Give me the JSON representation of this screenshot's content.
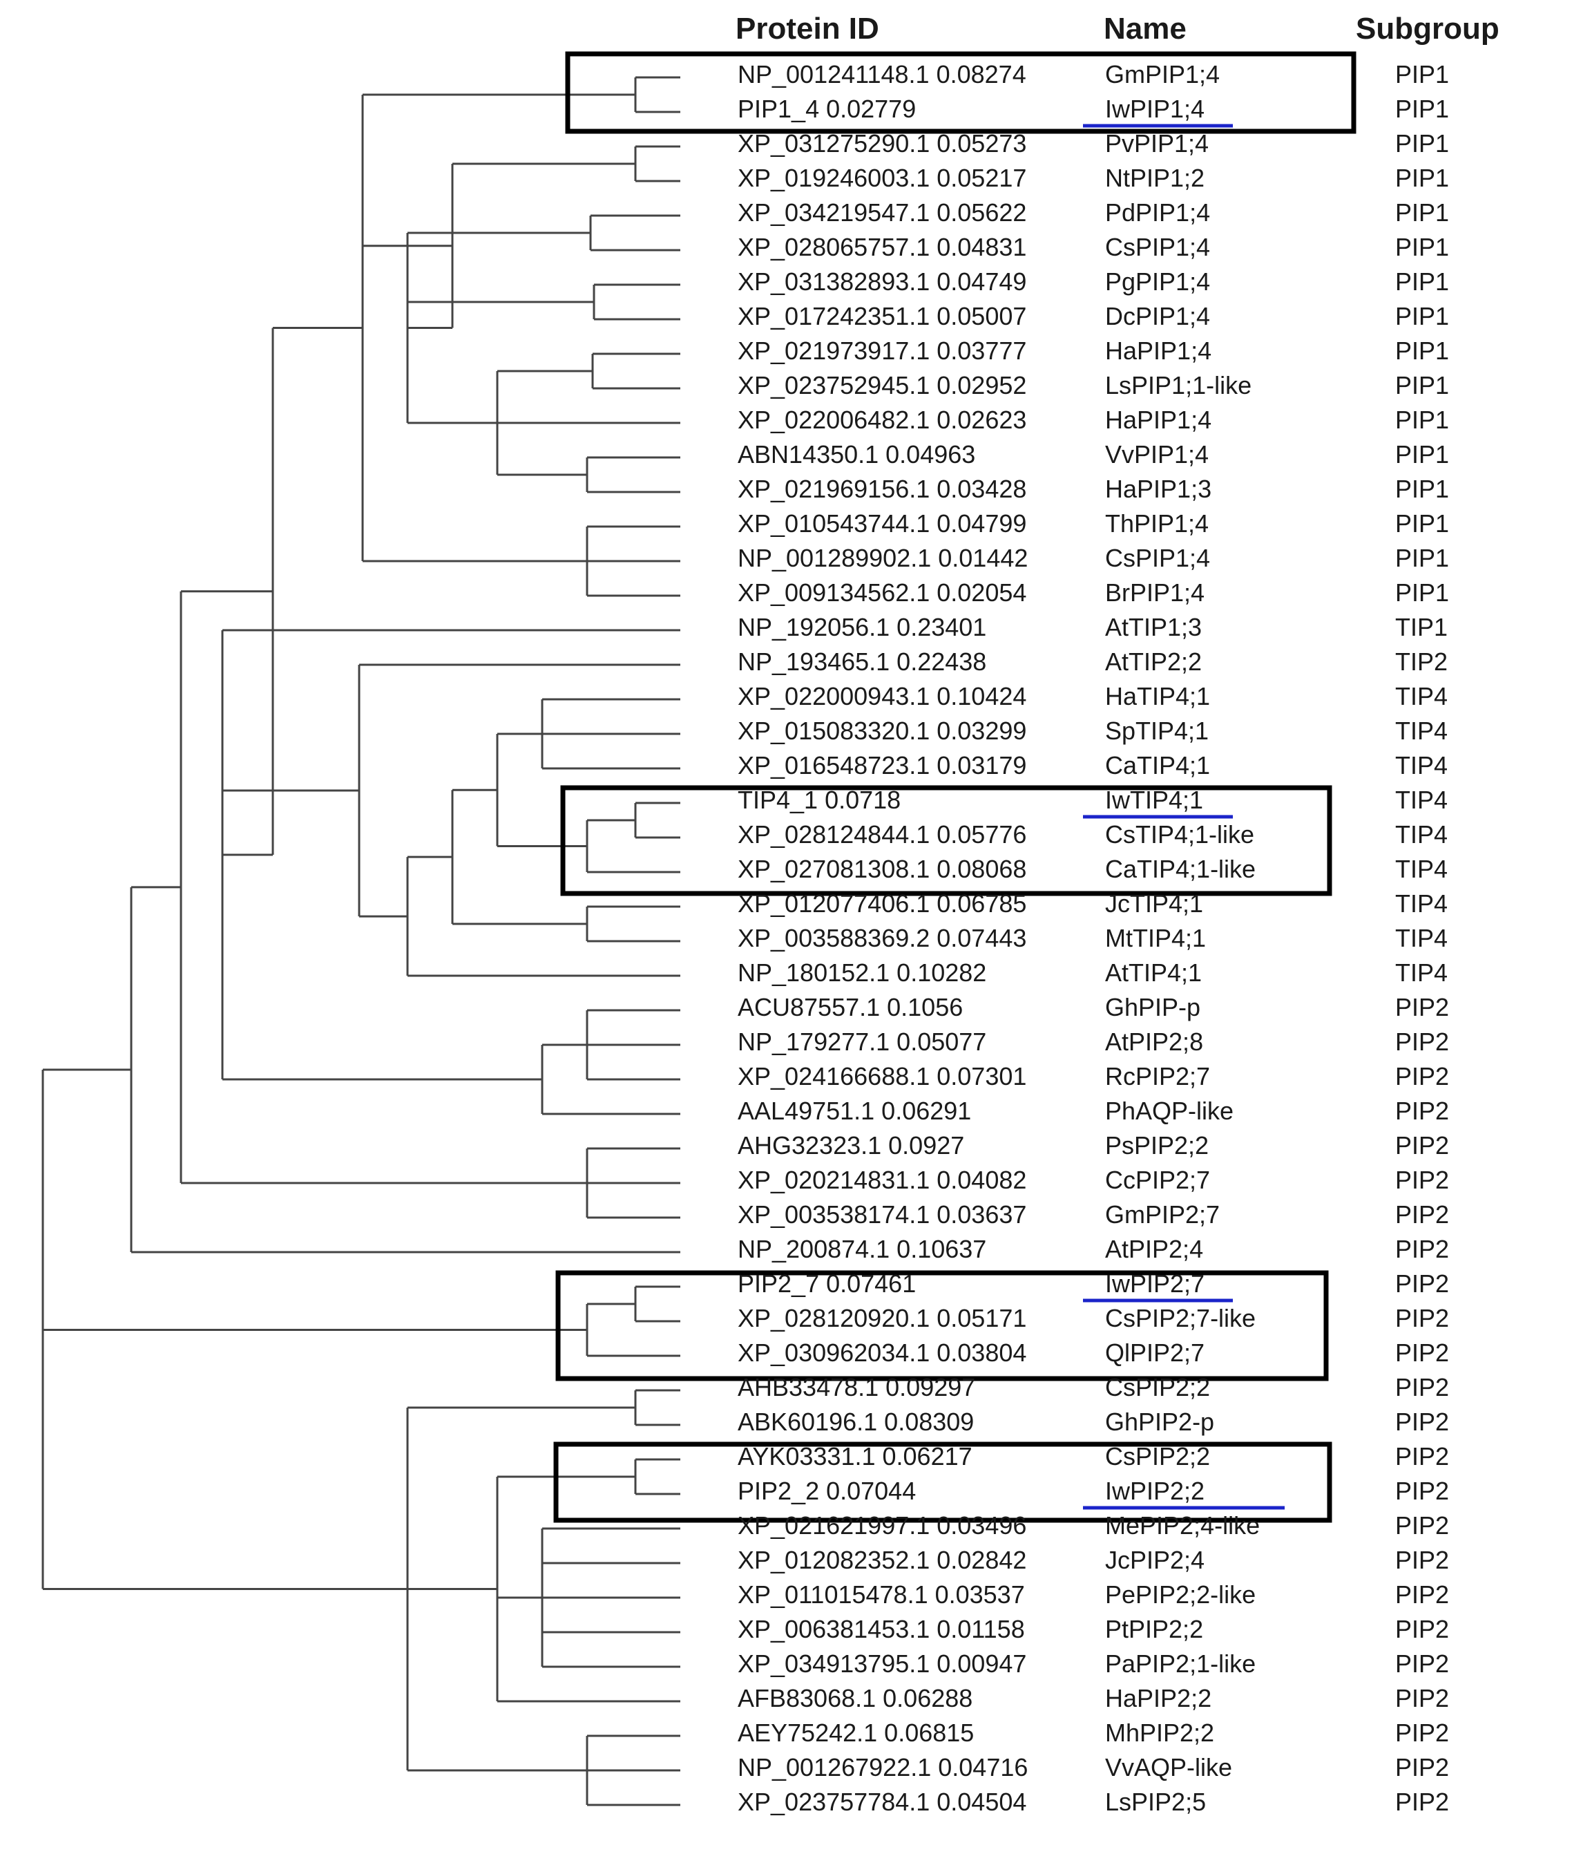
{
  "headers": {
    "protein_id": "Protein ID",
    "name": "Name",
    "subgroup": "Subgroup"
  },
  "colors": {
    "branch": "#444444",
    "box": "#000000",
    "underline": "#1b24c9"
  },
  "tree": {
    "branch_lengths_shown_in_labels": true,
    "highlighted_groups": [
      {
        "members": [
          "GmPIP1;4",
          "IwPIP1;4"
        ]
      },
      {
        "members": [
          "IwTIP4;1",
          "CsTIP4;1-like",
          "CaTIP4;1-like"
        ]
      },
      {
        "members": [
          "IwPIP2;7",
          "CsPIP2;7-like",
          "QlPIP2;7"
        ]
      },
      {
        "members": [
          "CsPIP2;2",
          "IwPIP2;2"
        ]
      }
    ]
  },
  "leaves": [
    {
      "id": "NP_001241148.1 0.08274",
      "name": "GmPIP1;4",
      "subgroup": "PIP1",
      "underline": false
    },
    {
      "id": "PIP1_4 0.02779",
      "name": "IwPIP1;4",
      "subgroup": "PIP1",
      "underline": true
    },
    {
      "id": "XP_031275290.1 0.05273",
      "name": "PvPIP1;4",
      "subgroup": "PIP1",
      "underline": false
    },
    {
      "id": "XP_019246003.1 0.05217",
      "name": "NtPIP1;2",
      "subgroup": "PIP1",
      "underline": false
    },
    {
      "id": "XP_034219547.1 0.05622",
      "name": "PdPIP1;4",
      "subgroup": "PIP1",
      "underline": false
    },
    {
      "id": "XP_028065757.1 0.04831",
      "name": "CsPIP1;4",
      "subgroup": "PIP1",
      "underline": false
    },
    {
      "id": "XP_031382893.1 0.04749",
      "name": "PgPIP1;4",
      "subgroup": "PIP1",
      "underline": false
    },
    {
      "id": "XP_017242351.1 0.05007",
      "name": "DcPIP1;4",
      "subgroup": "PIP1",
      "underline": false
    },
    {
      "id": "XP_021973917.1 0.03777",
      "name": "HaPIP1;4",
      "subgroup": "PIP1",
      "underline": false
    },
    {
      "id": "XP_023752945.1 0.02952",
      "name": "LsPIP1;1-like",
      "subgroup": "PIP1",
      "underline": false
    },
    {
      "id": "XP_022006482.1 0.02623",
      "name": "HaPIP1;4",
      "subgroup": "PIP1",
      "underline": false
    },
    {
      "id": "ABN14350.1 0.04963",
      "name": "VvPIP1;4",
      "subgroup": "PIP1",
      "underline": false
    },
    {
      "id": "XP_021969156.1 0.03428",
      "name": "HaPIP1;3",
      "subgroup": "PIP1",
      "underline": false
    },
    {
      "id": "XP_010543744.1 0.04799",
      "name": "ThPIP1;4",
      "subgroup": "PIP1",
      "underline": false
    },
    {
      "id": "NP_001289902.1 0.01442",
      "name": "CsPIP1;4",
      "subgroup": "PIP1",
      "underline": false
    },
    {
      "id": "XP_009134562.1 0.02054",
      "name": "BrPIP1;4",
      "subgroup": "PIP1",
      "underline": false
    },
    {
      "id": "NP_192056.1 0.23401",
      "name": "AtTIP1;3",
      "subgroup": "TIP1",
      "underline": false
    },
    {
      "id": "NP_193465.1 0.22438",
      "name": "AtTIP2;2",
      "subgroup": "TIP2",
      "underline": false
    },
    {
      "id": "XP_022000943.1 0.10424",
      "name": "HaTIP4;1",
      "subgroup": "TIP4",
      "underline": false
    },
    {
      "id": "XP_015083320.1 0.03299",
      "name": "SpTIP4;1",
      "subgroup": "TIP4",
      "underline": false
    },
    {
      "id": "XP_016548723.1 0.03179",
      "name": "CaTIP4;1",
      "subgroup": "TIP4",
      "underline": false
    },
    {
      "id": "TIP4_1 0.0718",
      "name": "IwTIP4;1",
      "subgroup": "TIP4",
      "underline": true
    },
    {
      "id": "XP_028124844.1 0.05776",
      "name": "CsTIP4;1-like",
      "subgroup": "TIP4",
      "underline": false
    },
    {
      "id": "XP_027081308.1 0.08068",
      "name": "CaTIP4;1-like",
      "subgroup": "TIP4",
      "underline": false
    },
    {
      "id": "XP_012077406.1 0.06785",
      "name": "JcTIP4;1",
      "subgroup": "TIP4",
      "underline": false
    },
    {
      "id": "XP_003588369.2 0.07443",
      "name": "MtTIP4;1",
      "subgroup": "TIP4",
      "underline": false
    },
    {
      "id": "NP_180152.1 0.10282",
      "name": "AtTIP4;1",
      "subgroup": "TIP4",
      "underline": false
    },
    {
      "id": "ACU87557.1 0.1056",
      "name": "GhPIP-p",
      "subgroup": "PIP2",
      "underline": false
    },
    {
      "id": "NP_179277.1 0.05077",
      "name": "AtPIP2;8",
      "subgroup": "PIP2",
      "underline": false
    },
    {
      "id": "XP_024166688.1 0.07301",
      "name": "RcPIP2;7",
      "subgroup": "PIP2",
      "underline": false
    },
    {
      "id": "AAL49751.1 0.06291",
      "name": "PhAQP-like",
      "subgroup": "PIP2",
      "underline": false
    },
    {
      "id": "AHG32323.1 0.0927",
      "name": "PsPIP2;2",
      "subgroup": "PIP2",
      "underline": false
    },
    {
      "id": "XP_020214831.1 0.04082",
      "name": "CcPIP2;7",
      "subgroup": "PIP2",
      "underline": false
    },
    {
      "id": "XP_003538174.1 0.03637",
      "name": "GmPIP2;7",
      "subgroup": "PIP2",
      "underline": false
    },
    {
      "id": "NP_200874.1 0.10637",
      "name": "AtPIP2;4",
      "subgroup": "PIP2",
      "underline": false
    },
    {
      "id": "PIP2_7 0.07461",
      "name": "IwPIP2;7",
      "subgroup": "PIP2",
      "underline": true
    },
    {
      "id": "XP_028120920.1 0.05171",
      "name": "CsPIP2;7-like",
      "subgroup": "PIP2",
      "underline": false
    },
    {
      "id": "XP_030962034.1 0.03804",
      "name": "QlPIP2;7",
      "subgroup": "PIP2",
      "underline": false
    },
    {
      "id": "AHB33478.1 0.09297",
      "name": "CsPIP2;2",
      "subgroup": "PIP2",
      "underline": false
    },
    {
      "id": "ABK60196.1 0.08309",
      "name": "GhPIP2-p",
      "subgroup": "PIP2",
      "underline": false
    },
    {
      "id": "AYK03331.1 0.06217",
      "name": "CsPIP2;2",
      "subgroup": "PIP2",
      "underline": false
    },
    {
      "id": "PIP2_2 0.07044",
      "name": "IwPIP2;2",
      "subgroup": "PIP2",
      "underline": true
    },
    {
      "id": "XP_021621997.1 0.03496",
      "name": "MePIP2;4-like",
      "subgroup": "PIP2",
      "underline": false
    },
    {
      "id": "XP_012082352.1 0.02842",
      "name": "JcPIP2;4",
      "subgroup": "PIP2",
      "underline": false
    },
    {
      "id": "XP_011015478.1 0.03537",
      "name": "PePIP2;2-like",
      "subgroup": "PIP2",
      "underline": false
    },
    {
      "id": "XP_006381453.1 0.01158",
      "name": "PtPIP2;2",
      "subgroup": "PIP2",
      "underline": false
    },
    {
      "id": "XP_034913795.1 0.00947",
      "name": "PaPIP2;1-like",
      "subgroup": "PIP2",
      "underline": false
    },
    {
      "id": "AFB83068.1 0.06288",
      "name": "HaPIP2;2",
      "subgroup": "PIP2",
      "underline": false
    },
    {
      "id": "AEY75242.1 0.06815",
      "name": "MhPIP2;2",
      "subgroup": "PIP2",
      "underline": false
    },
    {
      "id": "NP_001267922.1 0.04716",
      "name": "VvAQP-like",
      "subgroup": "PIP2",
      "underline": false
    },
    {
      "id": "XP_023757784.1 0.04504",
      "name": "LsPIP2;5",
      "subgroup": "PIP2",
      "underline": false
    }
  ]
}
